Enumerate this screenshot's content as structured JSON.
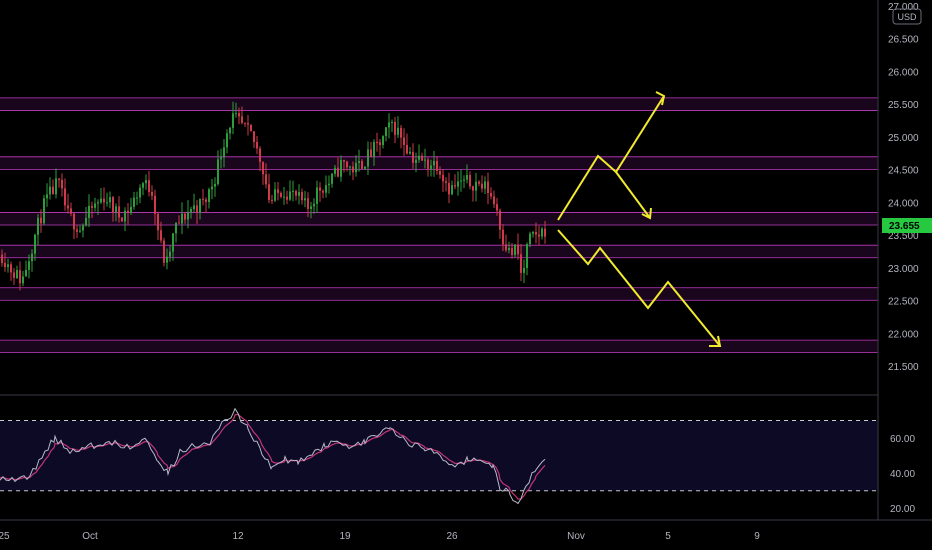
{
  "chart_data": [
    {
      "type": "candlestick",
      "currency": "USD",
      "current_price": "23.655",
      "ylim": [
        21.2,
        27.1
      ],
      "y_ticks": [
        "27.000",
        "26.500",
        "26.000",
        "25.500",
        "25.000",
        "24.500",
        "24.000",
        "23.500",
        "23.000",
        "22.500",
        "22.000",
        "21.500"
      ],
      "x_ticks": [
        "25",
        "Oct",
        "12",
        "19",
        "26",
        "Nov",
        "5",
        "9"
      ],
      "support_resistance_zones": [
        [
          25.45,
          25.55
        ],
        [
          24.55,
          24.65
        ],
        [
          23.7,
          23.8
        ],
        [
          23.2,
          23.3
        ],
        [
          22.55,
          22.65
        ],
        [
          21.75,
          21.85
        ]
      ],
      "colors": {
        "up": "#2e9e3a",
        "down": "#d03a4a",
        "zones": "#c23bc2",
        "arrows": "#f2ea2e",
        "current_badge": "#26c940"
      }
    },
    {
      "type": "line",
      "indicator": "RSI",
      "ylim": [
        15,
        80
      ],
      "y_ticks": [
        "60.00",
        "40.00",
        "20.00"
      ],
      "bands": [
        70,
        30
      ],
      "colors": {
        "rsi": "#b7b9c8",
        "signal": "#c2357a",
        "band_fill": "#0d0a26"
      }
    }
  ]
}
